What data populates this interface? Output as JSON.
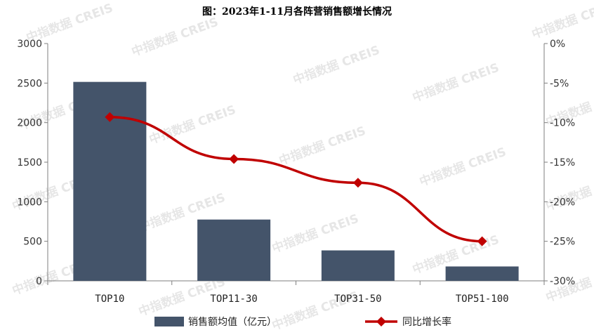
{
  "title": "图：2023年1-11月各阵营销售额增长情况",
  "watermark": "中指数据 CREIS",
  "colors": {
    "bar": "#44546a",
    "line": "#c00000",
    "axis": "#7f7f7f"
  },
  "chart_data": {
    "type": "bar+line",
    "categories": [
      "TOP10",
      "TOP11-30",
      "TOP31-50",
      "TOP51-100"
    ],
    "series": [
      {
        "name": "销售额均值（亿元）",
        "type": "bar",
        "axis": "left",
        "values": [
          2515,
          775,
          385,
          182
        ]
      },
      {
        "name": "同比增长率",
        "type": "line",
        "axis": "right",
        "values": [
          -9.3,
          -14.6,
          -17.6,
          -25.0
        ]
      }
    ],
    "y_left": {
      "min": 0,
      "max": 3000,
      "step": 500,
      "ticks": [
        "0",
        "500",
        "1000",
        "1500",
        "2000",
        "2500",
        "3000"
      ]
    },
    "y_right": {
      "min": -30,
      "max": 0,
      "step": 5,
      "ticks": [
        "0%",
        "-5%",
        "-10%",
        "-15%",
        "-20%",
        "-25%",
        "-30%"
      ]
    },
    "legend_position": "bottom"
  }
}
